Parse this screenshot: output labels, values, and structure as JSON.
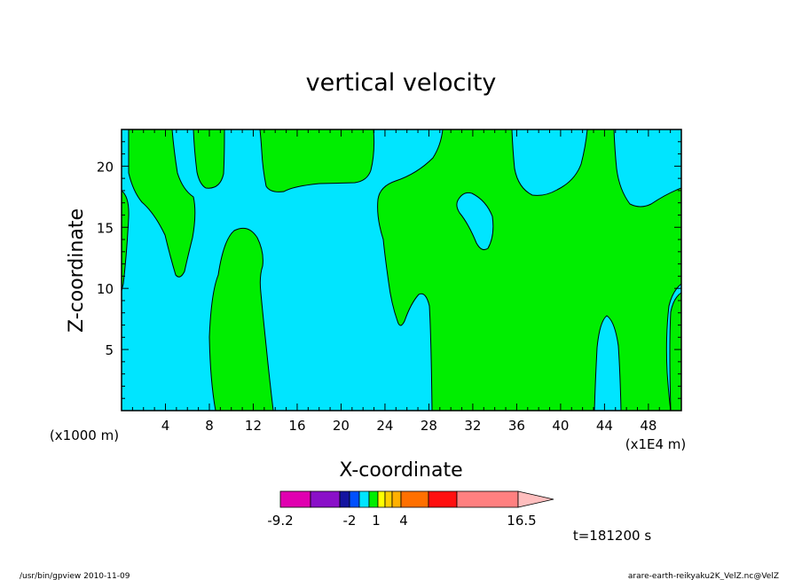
{
  "chart_data": {
    "type": "contour",
    "title": "vertical velocity",
    "xlabel": "X-coordinate",
    "ylabel": "Z-coordinate",
    "x_unit_left": "(x1000 m)",
    "x_unit_right": "(x1E4 m)",
    "xlim": [
      0,
      51
    ],
    "ylim": [
      0,
      23
    ],
    "x_ticks": [
      "4",
      "8",
      "12",
      "16",
      "20",
      "24",
      "28",
      "32",
      "36",
      "40",
      "44",
      "48"
    ],
    "y_ticks": [
      "5",
      "10",
      "15",
      "20"
    ],
    "fill_colors": {
      "negative": "#00e5ff",
      "positive": "#00ee00"
    },
    "colorbar": {
      "labels": [
        "-9.2",
        "-2",
        "1",
        "4",
        "16.5"
      ],
      "colors": [
        "#e000b0",
        "#8a10c8",
        "#1414a0",
        "#0050ff",
        "#00e5ff",
        "#00ee00",
        "#ffff00",
        "#ffd000",
        "#ffb000",
        "#ff7000",
        "#ff1010",
        "#ff8080",
        "#ffbebe"
      ]
    },
    "time_label": "t=181200 s"
  },
  "footer": {
    "left": "/usr/bin/gpview   2010-11-09",
    "right": "arare-earth-reikyaku2K_VelZ.nc@VelZ"
  }
}
